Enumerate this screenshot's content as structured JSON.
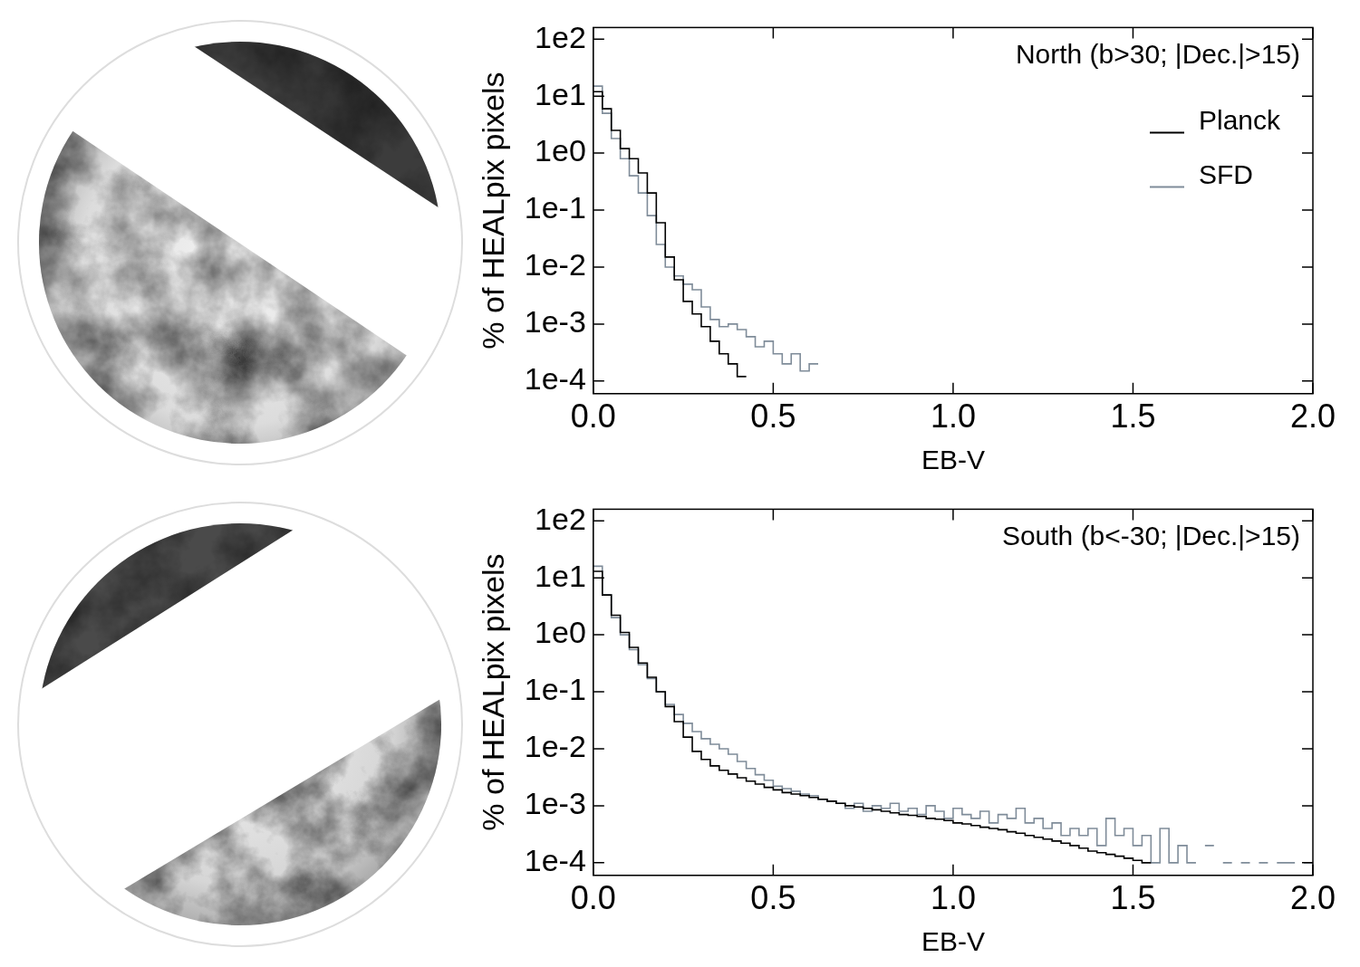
{
  "chart_data": [
    {
      "type": "histogram",
      "title": "North (b>30; |Dec.|>15)",
      "x_label": "EB-V",
      "y_label": "% of HEALpix pixels",
      "bins": [
        0,
        0.025,
        0.05,
        0.075,
        0.1,
        0.125,
        0.15,
        0.175,
        0.2,
        0.225,
        0.25,
        0.275,
        0.3,
        0.325,
        0.35,
        0.375,
        0.4,
        0.425,
        0.45,
        0.475,
        0.5,
        0.525,
        0.55,
        0.575,
        0.6,
        0.625,
        0.65
      ],
      "series": [
        {
          "name": "Planck",
          "color": "#000000",
          "values": [
            12,
            6,
            2.5,
            1.2,
            0.8,
            0.45,
            0.2,
            0.06,
            0.015,
            0.006,
            0.0025,
            0.0015,
            0.0009,
            0.0005,
            0.0003,
            0.0002,
            0.00012,
            null,
            null,
            null,
            null,
            null,
            null,
            null,
            null,
            null
          ]
        },
        {
          "name": "SFD",
          "color": "#7f8c99",
          "values": [
            15,
            5,
            1.8,
            0.8,
            0.4,
            0.2,
            0.08,
            0.025,
            0.01,
            0.007,
            0.005,
            0.004,
            0.002,
            0.0012,
            0.0009,
            0.001,
            0.0008,
            0.0006,
            0.0004,
            0.0005,
            0.0003,
            0.0002,
            0.0003,
            0.00015,
            0.0002,
            null
          ]
        }
      ],
      "xlim": [
        0,
        2
      ],
      "xticks": [
        {
          "value": 0,
          "label": "0.0"
        },
        {
          "value": 0.5,
          "label": "0.5"
        },
        {
          "value": 1,
          "label": "1.0"
        },
        {
          "value": 1.5,
          "label": "1.5"
        },
        {
          "value": 2,
          "label": "2.0"
        }
      ],
      "ylim": [
        6e-05,
        160
      ],
      "yticks": [
        {
          "value": 0.0001,
          "label": "1e-4"
        },
        {
          "value": 0.001,
          "label": "1e-3"
        },
        {
          "value": 0.01,
          "label": "1e-2"
        },
        {
          "value": 0.1,
          "label": "1e-1"
        },
        {
          "value": 1,
          "label": "1e0"
        },
        {
          "value": 10,
          "label": "1e1"
        },
        {
          "value": 100,
          "label": "1e2"
        }
      ],
      "log": "y",
      "grid": false,
      "legend": "upper right"
    },
    {
      "type": "histogram",
      "title": "South (b<-30; |Dec.|>15)",
      "x_label": "EB-V",
      "y_label": "% of HEALpix pixels",
      "bins": [
        0,
        0.025,
        0.05,
        0.075,
        0.1,
        0.125,
        0.15,
        0.175,
        0.2,
        0.225,
        0.25,
        0.275,
        0.3,
        0.325,
        0.35,
        0.375,
        0.4,
        0.425,
        0.45,
        0.475,
        0.5,
        0.525,
        0.55,
        0.575,
        0.6,
        0.625,
        0.65,
        0.675,
        0.7,
        0.725,
        0.75,
        0.775,
        0.8,
        0.825,
        0.85,
        0.875,
        0.9,
        0.925,
        0.95,
        0.975,
        1,
        1.025,
        1.05,
        1.075,
        1.1,
        1.125,
        1.15,
        1.175,
        1.2,
        1.225,
        1.25,
        1.275,
        1.3,
        1.325,
        1.35,
        1.375,
        1.4,
        1.425,
        1.45,
        1.475,
        1.5,
        1.525,
        1.55,
        1.575,
        1.6,
        1.625,
        1.65,
        1.675,
        1.7,
        1.725,
        1.75,
        1.775,
        1.8,
        1.825,
        1.85,
        1.875,
        1.9,
        1.925,
        1.95,
        1.975,
        2
      ],
      "series": [
        {
          "color": "#000000",
          "values": [
            13,
            5,
            2.2,
            1.1,
            0.6,
            0.32,
            0.18,
            0.1,
            0.055,
            0.03,
            0.016,
            0.009,
            0.0065,
            0.005,
            0.0042,
            0.0036,
            0.0031,
            0.0027,
            0.0024,
            0.0021,
            0.0019,
            0.0017,
            0.0016,
            0.0015,
            0.0014,
            0.0013,
            0.0012,
            0.0011,
            0.001,
            0.00095,
            0.0009,
            0.00085,
            0.0008,
            0.00075,
            0.0007,
            0.00068,
            0.00065,
            0.0006,
            0.00058,
            0.00055,
            0.0005,
            0.00048,
            0.00045,
            0.00042,
            0.0004,
            0.00038,
            0.00035,
            0.00033,
            0.0003,
            0.00028,
            0.00026,
            0.00024,
            0.00022,
            0.0002,
            0.00018,
            0.00016,
            0.00015,
            0.00014,
            0.00013,
            0.00012,
            0.00011,
            0.0001,
            null,
            null,
            null,
            null,
            null,
            null,
            null,
            null,
            null,
            null,
            null,
            null,
            null,
            null,
            null,
            null,
            null,
            null
          ]
        },
        {
          "color": "#7f8c99",
          "values": [
            16,
            5,
            2,
            1,
            0.55,
            0.3,
            0.17,
            0.1,
            0.06,
            0.04,
            0.028,
            0.02,
            0.015,
            0.012,
            0.01,
            0.008,
            0.006,
            0.0045,
            0.0035,
            0.0028,
            0.0022,
            0.002,
            0.0018,
            0.0016,
            0.0015,
            0.0013,
            0.0012,
            0.0011,
            0.0009,
            0.0011,
            0.0008,
            0.001,
            0.0009,
            0.0011,
            0.0008,
            0.0009,
            0.0007,
            0.001,
            0.0008,
            0.0006,
            0.0009,
            0.0007,
            0.0006,
            0.0008,
            0.0005,
            0.0007,
            0.0006,
            0.0009,
            0.0005,
            0.0006,
            0.0004,
            0.0005,
            0.0003,
            0.0004,
            0.0003,
            0.0004,
            0.0002,
            0.0006,
            0.0003,
            0.0004,
            0.0002,
            0.0003,
            0.0001,
            0.0004,
            0.0001,
            0.0002,
            0.0001,
            null,
            0.0002,
            null,
            0.0001,
            null,
            0.0001,
            null,
            0.0001,
            null,
            0.0001,
            0.0001,
            null,
            0.0001
          ]
        }
      ],
      "xlim": [
        0,
        2
      ],
      "xticks": [
        {
          "value": 0,
          "label": "0.0"
        },
        {
          "value": 0.5,
          "label": "0.5"
        },
        {
          "value": 1,
          "label": "1.0"
        },
        {
          "value": 1.5,
          "label": "1.5"
        },
        {
          "value": 2,
          "label": "2.0"
        }
      ],
      "ylim": [
        6e-05,
        160
      ],
      "yticks": [
        {
          "value": 0.0001,
          "label": "1e-4"
        },
        {
          "value": 0.001,
          "label": "1e-3"
        },
        {
          "value": 0.01,
          "label": "1e-2"
        },
        {
          "value": 0.1,
          "label": "1e-1"
        },
        {
          "value": 1,
          "label": "1e0"
        },
        {
          "value": 10,
          "label": "1e1"
        },
        {
          "value": 100,
          "label": "1e2"
        }
      ],
      "log": "y",
      "grid": false
    }
  ]
}
